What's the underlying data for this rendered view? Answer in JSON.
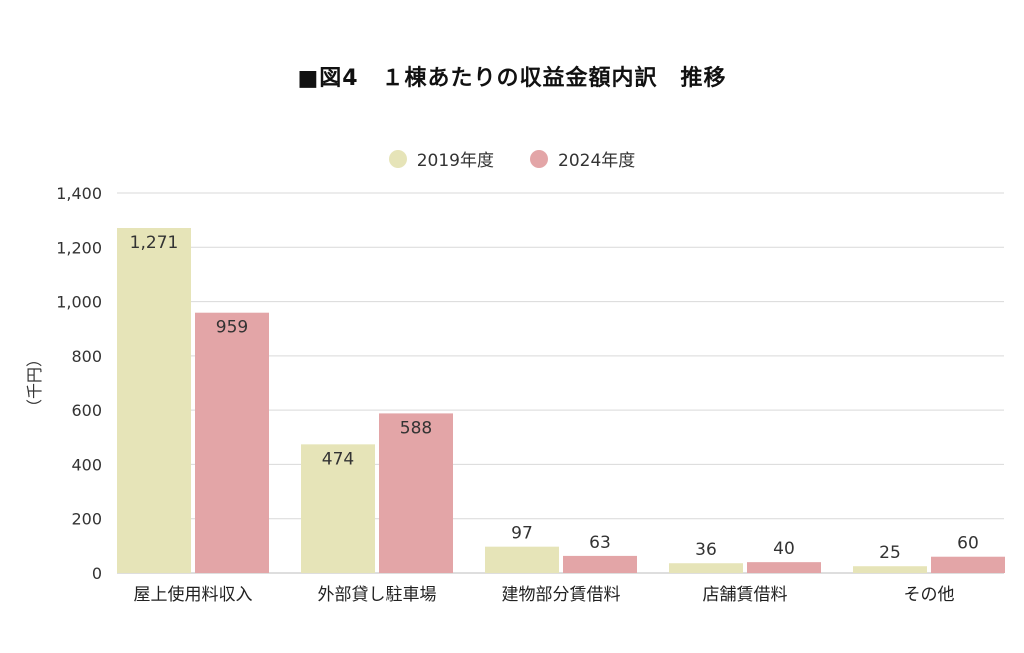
{
  "chart_data": {
    "type": "bar",
    "title": "■図4　１棟あたりの収益金額内訳　推移",
    "ylabel": "（千円）",
    "xlabel": "",
    "ylim": [
      0,
      1400
    ],
    "yticks": [
      0,
      200,
      400,
      600,
      800,
      1000,
      1200,
      1400
    ],
    "ytick_labels": [
      "0",
      "200",
      "400",
      "600",
      "800",
      "1,000",
      "1,200",
      "1,400"
    ],
    "grid": true,
    "legend_position": "top-center",
    "categories": [
      "屋上使用料収入",
      "外部貸し駐車場",
      "建物部分賃借料",
      "店舗賃借料",
      "その他"
    ],
    "series": [
      {
        "name": "2019年度",
        "color": "#e6e4b8",
        "values": [
          1271,
          474,
          97,
          36,
          25
        ],
        "labels": [
          "1,271",
          "474",
          "97",
          "36",
          "25"
        ]
      },
      {
        "name": "2024年度",
        "color": "#e3a5a7",
        "values": [
          959,
          588,
          63,
          40,
          60
        ],
        "labels": [
          "959",
          "588",
          "63",
          "40",
          "60"
        ]
      }
    ]
  }
}
